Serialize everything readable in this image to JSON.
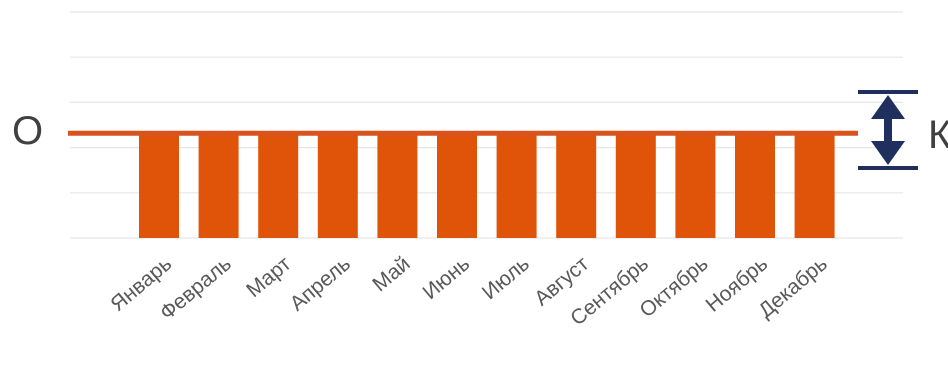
{
  "chart_data": {
    "type": "bar",
    "categories": [
      "Январь",
      "Февраль",
      "Март",
      "Апрель",
      "Май",
      "Июнь",
      "Июль",
      "Август",
      "Сентябрь",
      "Октябрь",
      "Ноябрь",
      "Декабрь"
    ],
    "values": [
      1,
      1,
      1,
      1,
      1,
      1,
      1,
      1,
      1,
      1,
      1,
      1
    ],
    "ylim": [
      0,
      2.2
    ],
    "reference_line": {
      "value": 1.0,
      "label": "О",
      "color": "#d9531e"
    },
    "range_indicator": {
      "label": "К",
      "color": "#1f2f5e"
    },
    "grid": true,
    "colors": {
      "bar": "#e0540a",
      "grid": "#e6e6e6",
      "reference": "#d9531e",
      "indicator": "#1f2f5e"
    }
  }
}
